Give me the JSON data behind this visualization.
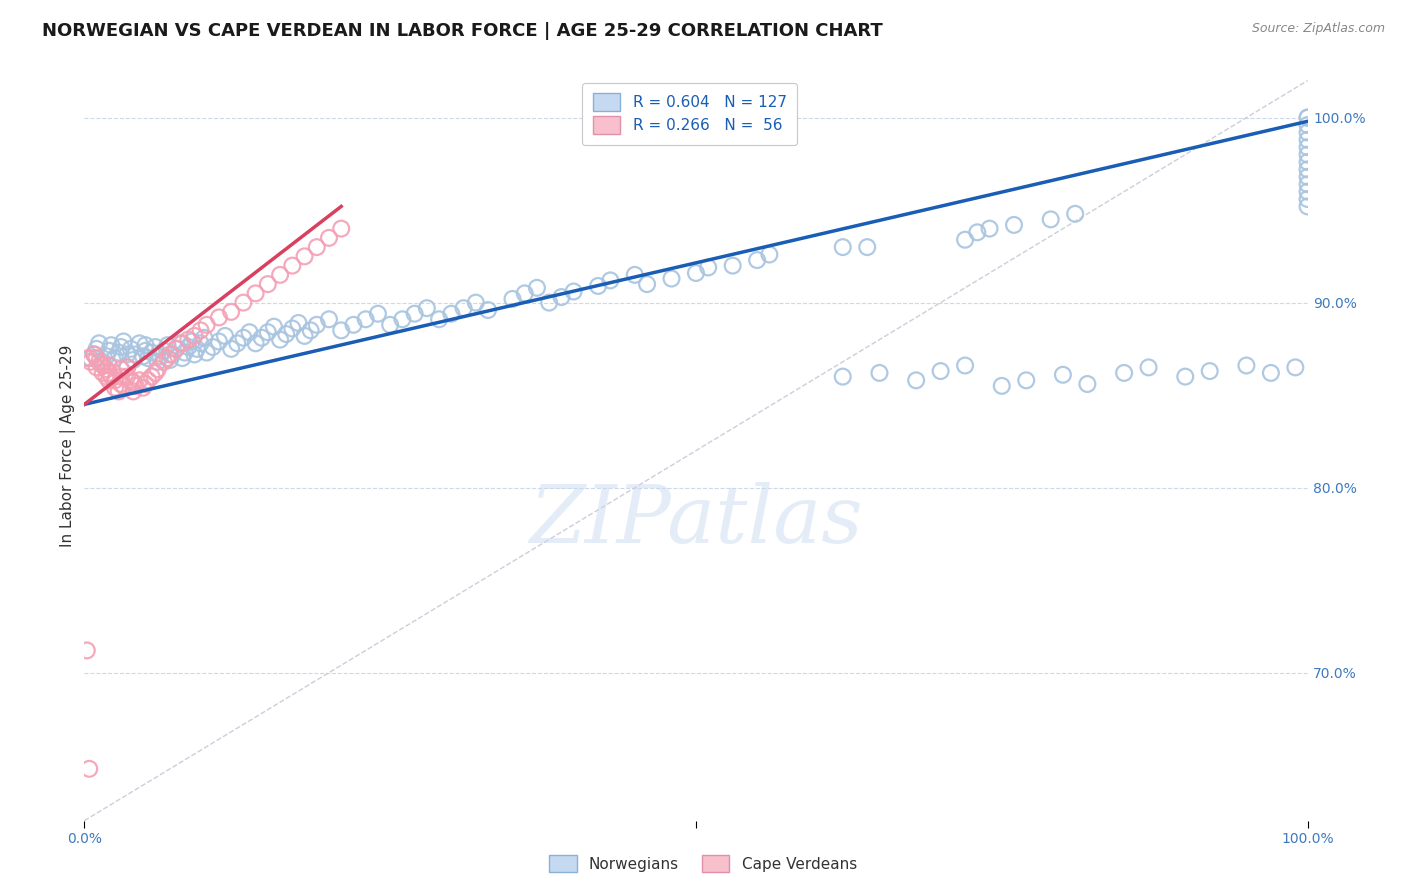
{
  "title": "NORWEGIAN VS CAPE VERDEAN IN LABOR FORCE | AGE 25-29 CORRELATION CHART",
  "source": "Source: ZipAtlas.com",
  "ylabel": "In Labor Force | Age 25-29",
  "xlim": [
    0.0,
    1.0
  ],
  "ylim": [
    0.62,
    1.025
  ],
  "yticks": [
    0.7,
    0.8,
    0.9,
    1.0
  ],
  "ytick_labels": [
    "70.0%",
    "80.0%",
    "90.0%",
    "100.0%"
  ],
  "blue_R": 0.604,
  "blue_N": 127,
  "pink_R": 0.266,
  "pink_N": 56,
  "blue_color": "#a8c4e0",
  "pink_color": "#f4a0b4",
  "blue_line_color": "#1a5db5",
  "pink_line_color": "#d94060",
  "ref_line_color": "#c8c8d8",
  "watermark": "ZIPatlas",
  "title_color": "#1a1a1a",
  "axis_label_color": "#333333",
  "tick_label_color_right": "#3d7abf",
  "tick_label_color_bottom": "#3d7abf",
  "background_color": "#ffffff",
  "grid_color": "#ccd8ec",
  "blue_scatter_x": [
    0.005,
    0.008,
    0.01,
    0.012,
    0.015,
    0.018,
    0.02,
    0.022,
    0.025,
    0.028,
    0.03,
    0.032,
    0.035,
    0.035,
    0.038,
    0.04,
    0.042,
    0.045,
    0.048,
    0.05,
    0.05,
    0.052,
    0.055,
    0.058,
    0.06,
    0.062,
    0.065,
    0.068,
    0.07,
    0.072,
    0.075,
    0.078,
    0.08,
    0.082,
    0.085,
    0.088,
    0.09,
    0.092,
    0.095,
    0.098,
    0.1,
    0.105,
    0.11,
    0.115,
    0.12,
    0.125,
    0.13,
    0.135,
    0.14,
    0.145,
    0.15,
    0.155,
    0.16,
    0.165,
    0.17,
    0.175,
    0.18,
    0.185,
    0.19,
    0.2,
    0.21,
    0.22,
    0.23,
    0.24,
    0.25,
    0.26,
    0.27,
    0.28,
    0.29,
    0.3,
    0.31,
    0.32,
    0.33,
    0.35,
    0.36,
    0.37,
    0.38,
    0.39,
    0.4,
    0.42,
    0.43,
    0.45,
    0.46,
    0.48,
    0.5,
    0.51,
    0.53,
    0.55,
    0.56,
    0.62,
    0.64,
    0.72,
    0.73,
    0.74,
    0.76,
    0.79,
    0.81,
    0.62,
    0.65,
    0.68,
    0.7,
    0.72,
    0.75,
    0.77,
    0.8,
    0.82,
    0.85,
    0.87,
    0.9,
    0.92,
    0.95,
    0.97,
    0.99,
    1.0,
    1.0,
    1.0,
    1.0,
    1.0,
    1.0,
    1.0,
    1.0,
    1.0,
    1.0,
    1.0,
    1.0,
    1.0,
    1.0
  ],
  "blue_scatter_y": [
    0.87,
    0.872,
    0.875,
    0.878,
    0.868,
    0.871,
    0.874,
    0.877,
    0.87,
    0.873,
    0.876,
    0.879,
    0.865,
    0.872,
    0.875,
    0.869,
    0.872,
    0.878,
    0.871,
    0.874,
    0.877,
    0.87,
    0.873,
    0.876,
    0.868,
    0.871,
    0.874,
    0.877,
    0.869,
    0.872,
    0.875,
    0.878,
    0.87,
    0.873,
    0.876,
    0.879,
    0.872,
    0.875,
    0.878,
    0.881,
    0.873,
    0.876,
    0.879,
    0.882,
    0.875,
    0.878,
    0.881,
    0.884,
    0.878,
    0.881,
    0.884,
    0.887,
    0.88,
    0.883,
    0.886,
    0.889,
    0.882,
    0.885,
    0.888,
    0.891,
    0.885,
    0.888,
    0.891,
    0.894,
    0.888,
    0.891,
    0.894,
    0.897,
    0.891,
    0.894,
    0.897,
    0.9,
    0.896,
    0.902,
    0.905,
    0.908,
    0.9,
    0.903,
    0.906,
    0.909,
    0.912,
    0.915,
    0.91,
    0.913,
    0.916,
    0.919,
    0.92,
    0.923,
    0.926,
    0.93,
    0.93,
    0.934,
    0.938,
    0.94,
    0.942,
    0.945,
    0.948,
    0.86,
    0.862,
    0.858,
    0.863,
    0.866,
    0.855,
    0.858,
    0.861,
    0.856,
    0.862,
    0.865,
    0.86,
    0.863,
    0.866,
    0.862,
    0.865,
    0.952,
    0.956,
    0.96,
    0.964,
    0.968,
    0.972,
    0.976,
    0.98,
    0.984,
    0.988,
    0.992,
    0.996,
    1.0,
    1.0
  ],
  "pink_scatter_x": [
    0.003,
    0.005,
    0.008,
    0.01,
    0.01,
    0.012,
    0.015,
    0.015,
    0.018,
    0.018,
    0.02,
    0.02,
    0.02,
    0.022,
    0.025,
    0.025,
    0.028,
    0.03,
    0.03,
    0.03,
    0.032,
    0.035,
    0.035,
    0.038,
    0.04,
    0.04,
    0.042,
    0.045,
    0.048,
    0.05,
    0.052,
    0.055,
    0.058,
    0.06,
    0.065,
    0.068,
    0.07,
    0.075,
    0.08,
    0.085,
    0.09,
    0.095,
    0.1,
    0.11,
    0.12,
    0.13,
    0.14,
    0.15,
    0.16,
    0.17,
    0.18,
    0.19,
    0.2,
    0.21,
    0.002,
    0.004
  ],
  "pink_scatter_y": [
    0.87,
    0.868,
    0.872,
    0.865,
    0.87,
    0.868,
    0.862,
    0.866,
    0.86,
    0.864,
    0.858,
    0.862,
    0.866,
    0.86,
    0.854,
    0.858,
    0.852,
    0.856,
    0.86,
    0.864,
    0.855,
    0.86,
    0.865,
    0.858,
    0.852,
    0.857,
    0.855,
    0.858,
    0.854,
    0.856,
    0.858,
    0.86,
    0.862,
    0.864,
    0.868,
    0.87,
    0.872,
    0.875,
    0.878,
    0.88,
    0.882,
    0.885,
    0.888,
    0.892,
    0.895,
    0.9,
    0.905,
    0.91,
    0.915,
    0.92,
    0.925,
    0.93,
    0.935,
    0.94,
    0.712,
    0.648
  ],
  "blue_line_x": [
    0.0,
    1.0
  ],
  "blue_line_y": [
    0.845,
    0.998
  ],
  "pink_line_x": [
    0.0,
    0.21
  ],
  "pink_line_y": [
    0.845,
    0.952
  ]
}
